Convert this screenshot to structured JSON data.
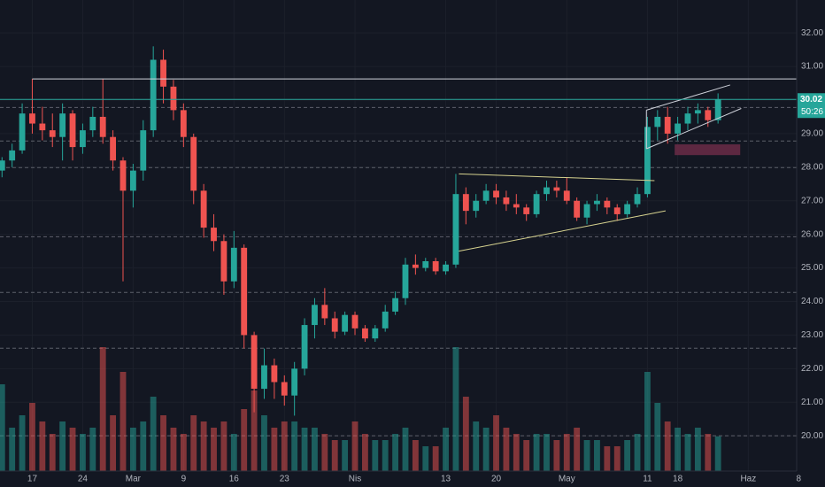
{
  "chart_data": {
    "type": "candlestick",
    "up_color": "#26a69a",
    "down_color": "#ef5350",
    "open": [
      27.9,
      28.2,
      28.5,
      29.6,
      29.3,
      29.1,
      28.9,
      29.6,
      28.6,
      29.1,
      29.5,
      28.9,
      28.2,
      27.3,
      27.9,
      29.1,
      31.2,
      30.4,
      29.7,
      28.9,
      27.3,
      26.2,
      25.8,
      24.6,
      25.6,
      23.0,
      21.4,
      22.1,
      21.6,
      21.2,
      22.0,
      23.3,
      23.9,
      23.5,
      23.1,
      23.6,
      23.2,
      22.9,
      23.2,
      23.7,
      24.1,
      25.1,
      25.0,
      25.2,
      24.9,
      25.1,
      27.2,
      26.7,
      27.0,
      27.3,
      27.1,
      26.9,
      26.8,
      26.6,
      27.2,
      27.4,
      27.3,
      27.0,
      26.5,
      26.9,
      27.0,
      26.8,
      26.6,
      26.9,
      27.2,
      29.2,
      29.5,
      29.0,
      29.3,
      29.6,
      29.7,
      29.4
    ],
    "high": [
      28.3,
      28.7,
      29.9,
      30.63,
      29.8,
      29.6,
      29.9,
      29.7,
      29.3,
      29.8,
      30.63,
      29.1,
      28.3,
      28.1,
      29.4,
      31.6,
      31.5,
      30.6,
      29.9,
      29.0,
      27.5,
      26.6,
      26.0,
      26.1,
      25.7,
      23.1,
      22.6,
      22.3,
      21.8,
      22.2,
      23.5,
      24.1,
      24.4,
      23.7,
      23.7,
      23.7,
      23.3,
      23.3,
      23.9,
      24.3,
      25.3,
      25.4,
      25.3,
      25.3,
      25.2,
      27.8,
      27.4,
      27.2,
      27.5,
      27.5,
      27.3,
      27.2,
      26.9,
      27.3,
      27.6,
      27.6,
      27.7,
      27.1,
      27.0,
      27.2,
      27.1,
      26.9,
      27.0,
      27.4,
      29.5,
      29.7,
      29.8,
      29.5,
      29.8,
      29.9,
      29.8,
      30.2
    ],
    "low": [
      27.7,
      28.0,
      28.4,
      29.0,
      28.8,
      28.6,
      28.2,
      28.2,
      28.4,
      28.9,
      28.7,
      27.9,
      24.6,
      26.8,
      27.6,
      28.9,
      29.9,
      29.4,
      28.6,
      26.9,
      25.9,
      25.5,
      24.2,
      24.4,
      22.6,
      20.7,
      21.1,
      21.1,
      20.9,
      20.6,
      21.8,
      22.9,
      23.3,
      22.9,
      23.0,
      23.0,
      22.8,
      22.8,
      23.1,
      23.6,
      23.9,
      24.8,
      24.9,
      24.8,
      24.8,
      25.0,
      26.3,
      26.5,
      26.9,
      26.9,
      26.7,
      26.6,
      26.4,
      26.5,
      27.0,
      27.1,
      26.9,
      26.4,
      26.3,
      26.7,
      26.6,
      26.4,
      26.5,
      26.8,
      27.1,
      28.8,
      28.7,
      28.8,
      29.1,
      29.3,
      29.2,
      29.3
    ],
    "close": [
      28.2,
      28.5,
      29.6,
      29.3,
      29.1,
      28.9,
      29.6,
      28.6,
      29.1,
      29.5,
      28.9,
      28.2,
      27.3,
      27.9,
      29.1,
      31.2,
      30.4,
      29.7,
      28.9,
      27.3,
      26.2,
      25.8,
      24.6,
      25.6,
      23.0,
      21.4,
      22.1,
      21.6,
      21.2,
      22.0,
      23.3,
      23.9,
      23.5,
      23.1,
      23.6,
      23.2,
      22.9,
      23.2,
      23.7,
      24.1,
      25.1,
      25.0,
      25.2,
      24.9,
      25.1,
      27.2,
      26.7,
      27.0,
      27.3,
      27.1,
      26.9,
      26.8,
      26.6,
      27.2,
      27.4,
      27.3,
      27.0,
      26.5,
      26.9,
      27.0,
      26.8,
      26.6,
      26.9,
      27.2,
      29.2,
      29.5,
      29.0,
      29.3,
      29.6,
      29.7,
      29.4,
      30.02
    ],
    "volume": [
      70,
      35,
      45,
      55,
      40,
      30,
      40,
      35,
      30,
      35,
      100,
      45,
      80,
      35,
      40,
      60,
      45,
      35,
      30,
      45,
      40,
      35,
      40,
      30,
      50,
      65,
      45,
      35,
      40,
      40,
      35,
      35,
      30,
      25,
      25,
      40,
      30,
      25,
      25,
      30,
      35,
      25,
      20,
      20,
      35,
      100,
      60,
      40,
      35,
      45,
      35,
      30,
      25,
      30,
      30,
      25,
      30,
      35,
      25,
      25,
      20,
      20,
      25,
      30,
      80,
      55,
      40,
      35,
      30,
      35,
      30,
      28
    ],
    "vlim": [
      0,
      100
    ],
    "xlim": [
      -0.2,
      79.5
    ],
    "xticks": [
      {
        "value": 3,
        "label": "17"
      },
      {
        "value": 8,
        "label": "24"
      },
      {
        "value": 13,
        "label": "Mar"
      },
      {
        "value": 18,
        "label": "9"
      },
      {
        "value": 23,
        "label": "16"
      },
      {
        "value": 28,
        "label": "23"
      },
      {
        "value": 35,
        "label": "Nis"
      },
      {
        "value": 44,
        "label": "13"
      },
      {
        "value": 49,
        "label": "20"
      },
      {
        "value": 56,
        "label": "May"
      },
      {
        "value": 64,
        "label": "11"
      },
      {
        "value": 67,
        "label": "18"
      },
      {
        "value": 74,
        "label": "Haz"
      },
      {
        "value": 79,
        "label": "8"
      }
    ],
    "ylim": [
      18.95,
      32.98
    ],
    "yticks": [
      {
        "value": 20,
        "label": "20.00"
      },
      {
        "value": 21,
        "label": "21.00"
      },
      {
        "value": 22,
        "label": "22.00"
      },
      {
        "value": 23,
        "label": "23.00"
      },
      {
        "value": 24,
        "label": "24.00"
      },
      {
        "value": 25,
        "label": "25.00"
      },
      {
        "value": 26,
        "label": "26.00"
      },
      {
        "value": 27,
        "label": "27.00"
      },
      {
        "value": 28,
        "label": "28.00"
      },
      {
        "value": 29,
        "label": "29.00"
      },
      {
        "value": 30,
        "label": "30.00"
      },
      {
        "value": 31,
        "label": "31.00"
      },
      {
        "value": 32,
        "label": "32.00"
      }
    ],
    "levels": [
      29.78,
      28.78,
      27.99,
      25.93,
      24.27,
      22.61,
      20.0
    ],
    "level_color": "#5d606b",
    "lines": [
      {
        "x": [
          3,
          79.5
        ],
        "y": [
          30.63,
          30.63
        ],
        "color": "#d1d4dc"
      },
      {
        "x": [
          45.3,
          64.7
        ],
        "y": [
          27.8,
          27.6
        ],
        "color": "#d6d28f"
      },
      {
        "x": [
          45.3,
          65.8
        ],
        "y": [
          25.5,
          26.7
        ],
        "color": "#d6d28f"
      },
      {
        "x": [
          63.9,
          72.2
        ],
        "y": [
          29.7,
          30.45
        ],
        "color": "#d1d4dc"
      },
      {
        "x": [
          63.9,
          73.3
        ],
        "y": [
          28.55,
          29.75
        ],
        "color": "#d1d4dc"
      },
      {
        "x": [
          63.9,
          63.9
        ],
        "y": [
          29.7,
          28.55
        ],
        "color": "#d1d4dc"
      }
    ],
    "zone": {
      "x": [
        66.7,
        73.2
      ],
      "y": [
        28.36,
        28.68
      ],
      "color": "#6b2c46"
    },
    "last_price": {
      "value": 30.02,
      "label": "30.02"
    },
    "countdown": "50:26"
  }
}
